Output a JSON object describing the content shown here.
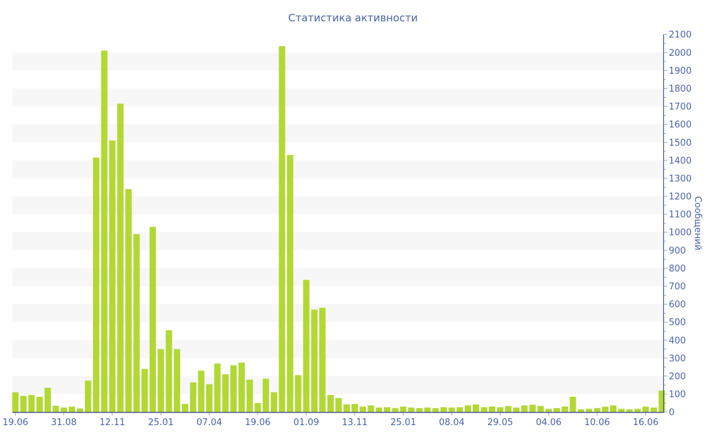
{
  "colors": {
    "bar": "#b2d834",
    "label": "#4b63a8",
    "axis_line": "#46558c",
    "tick": "#9aa5bd",
    "stripe": "#f7f7f7",
    "background": "#ffffff"
  },
  "chart_data": {
    "type": "bar",
    "title": "Статистика активности",
    "ylabel": "Сообщений",
    "xlabel": "",
    "ylim": [
      0,
      2100
    ],
    "y_tick_step": 100,
    "y_minor_tick_step": 50,
    "legend_position": "none",
    "grid": "alternating horizontal bands every 100 units",
    "values": [
      110,
      90,
      95,
      85,
      135,
      35,
      25,
      30,
      20,
      175,
      1415,
      2010,
      1510,
      1715,
      1240,
      990,
      240,
      1030,
      350,
      455,
      350,
      45,
      165,
      230,
      155,
      270,
      210,
      260,
      275,
      180,
      50,
      185,
      110,
      2035,
      1430,
      205,
      735,
      570,
      580,
      95,
      78,
      43,
      45,
      30,
      37,
      25,
      27,
      22,
      30,
      25,
      22,
      25,
      22,
      27,
      25,
      27,
      37,
      43,
      27,
      31,
      27,
      34,
      25,
      37,
      41,
      34,
      18,
      22,
      31,
      85,
      15,
      18,
      22,
      30,
      37,
      18,
      15,
      18,
      30,
      25,
      120
    ],
    "x_tick_labels": [
      "19.06",
      "31.08",
      "12.11",
      "25.01",
      "07.04",
      "19.06",
      "01.09",
      "13.11",
      "25.01",
      "08.04",
      "29.05",
      "04.06",
      "10.06",
      "16.06"
    ],
    "x_tick_indices": [
      0,
      6,
      12,
      18,
      24,
      30,
      36,
      42,
      48,
      54,
      60,
      66,
      72,
      78
    ]
  }
}
